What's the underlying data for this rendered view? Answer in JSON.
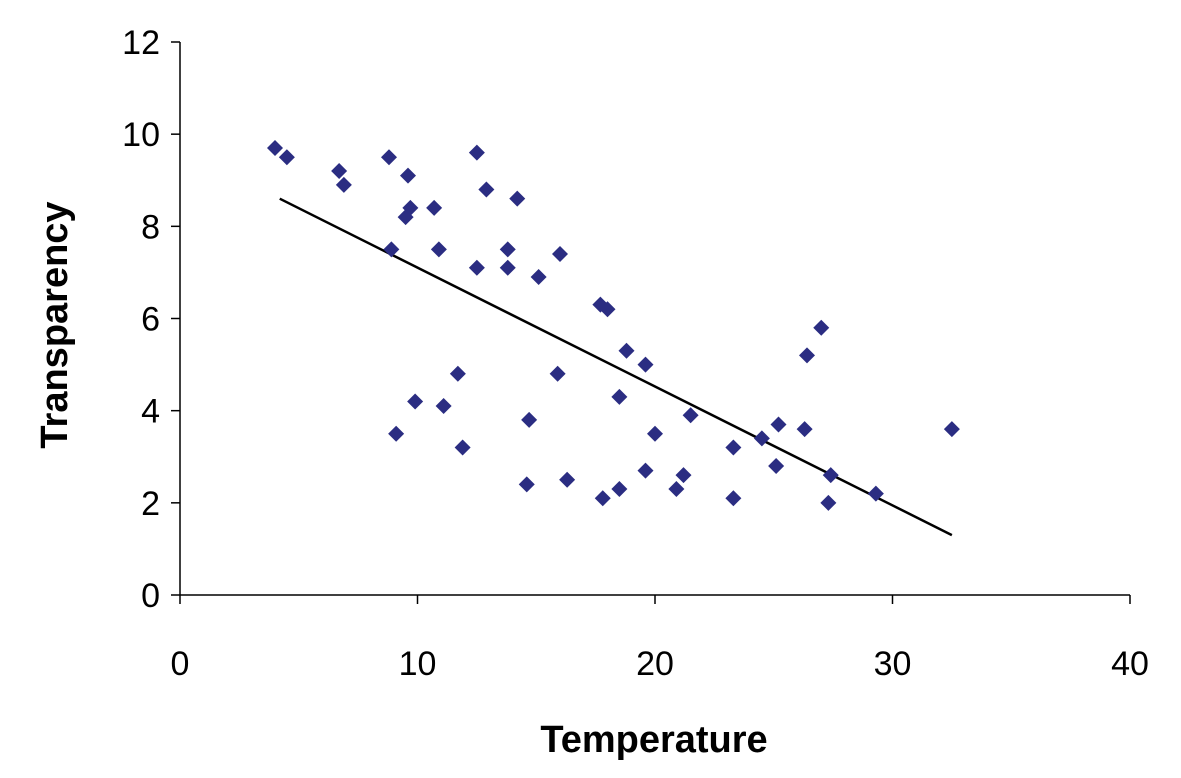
{
  "chart_data": {
    "type": "scatter",
    "title": "",
    "xlabel": "Temperature",
    "ylabel": "Transparency",
    "xlim": [
      0,
      40
    ],
    "ylim": [
      0,
      12
    ],
    "xticks": [
      0,
      10,
      20,
      30,
      40
    ],
    "yticks": [
      0,
      2,
      4,
      6,
      8,
      10,
      12
    ],
    "grid": false,
    "legend": "none",
    "marker": "diamond",
    "colors": {
      "points": "#2b2d82",
      "trendline": "#000000",
      "axes": "#000000"
    },
    "series": [
      {
        "points": [
          [
            4.0,
            9.7
          ],
          [
            4.5,
            9.5
          ],
          [
            6.7,
            9.2
          ],
          [
            6.9,
            8.9
          ],
          [
            8.8,
            9.5
          ],
          [
            9.6,
            9.1
          ],
          [
            9.7,
            8.4
          ],
          [
            9.5,
            8.2
          ],
          [
            8.9,
            7.5
          ],
          [
            10.7,
            8.4
          ],
          [
            10.9,
            7.5
          ],
          [
            12.5,
            9.6
          ],
          [
            12.9,
            8.8
          ],
          [
            12.5,
            7.1
          ],
          [
            13.8,
            7.5
          ],
          [
            13.8,
            7.1
          ],
          [
            14.2,
            8.6
          ],
          [
            15.1,
            6.9
          ],
          [
            16.0,
            7.4
          ],
          [
            17.7,
            6.3
          ],
          [
            18.0,
            6.2
          ],
          [
            18.8,
            5.3
          ],
          [
            19.6,
            5.0
          ],
          [
            15.9,
            4.8
          ],
          [
            18.5,
            4.3
          ],
          [
            20.0,
            3.5
          ],
          [
            21.5,
            3.9
          ],
          [
            11.7,
            4.8
          ],
          [
            11.1,
            4.1
          ],
          [
            9.9,
            4.2
          ],
          [
            9.1,
            3.5
          ],
          [
            11.9,
            3.2
          ],
          [
            14.7,
            3.8
          ],
          [
            14.6,
            2.4
          ],
          [
            16.3,
            2.5
          ],
          [
            17.8,
            2.1
          ],
          [
            18.5,
            2.3
          ],
          [
            19.6,
            2.7
          ],
          [
            20.9,
            2.3
          ],
          [
            21.2,
            2.6
          ],
          [
            23.3,
            3.2
          ],
          [
            23.3,
            2.1
          ],
          [
            24.5,
            3.4
          ],
          [
            25.1,
            2.8
          ],
          [
            25.2,
            3.7
          ],
          [
            26.3,
            3.6
          ],
          [
            26.4,
            5.2
          ],
          [
            27.0,
            5.8
          ],
          [
            27.4,
            2.6
          ],
          [
            27.3,
            2.0
          ],
          [
            29.3,
            2.2
          ],
          [
            32.5,
            3.6
          ]
        ]
      }
    ],
    "trendline": {
      "x": [
        4.2,
        32.5
      ],
      "y": [
        8.6,
        1.3
      ]
    }
  }
}
